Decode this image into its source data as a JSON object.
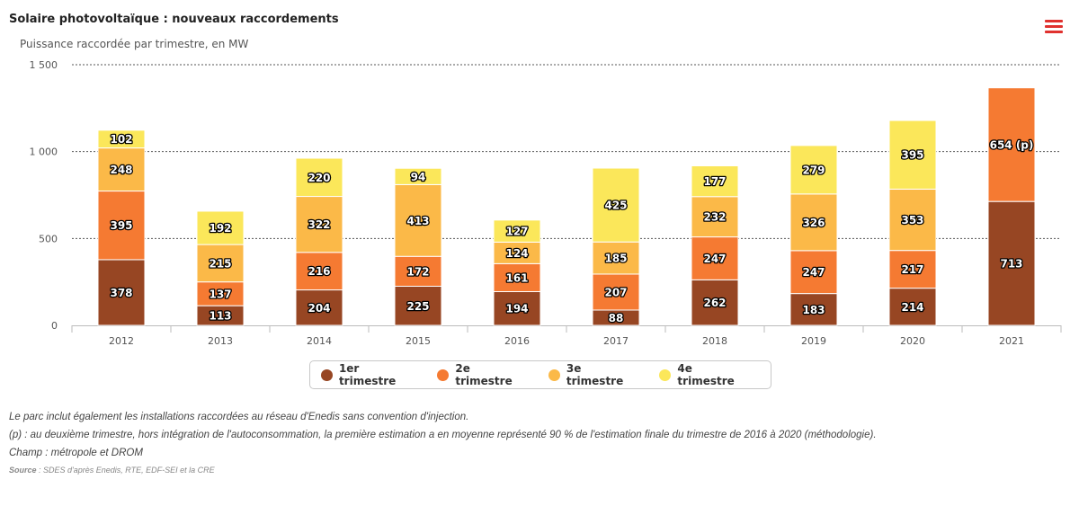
{
  "header": {
    "title": "Solaire photovoltaïque : nouveaux raccordements",
    "subtitle": "Puissance raccordée par trimestre, en MW",
    "menu_icon": "hamburger-menu-icon"
  },
  "chart_data": {
    "type": "bar",
    "stacked": true,
    "categories": [
      "2012",
      "2013",
      "2014",
      "2015",
      "2016",
      "2017",
      "2018",
      "2019",
      "2020",
      "2021"
    ],
    "series": [
      {
        "name": "1er trimestre",
        "color": "#974623",
        "values": [
          378,
          113,
          204,
          225,
          194,
          88,
          262,
          183,
          214,
          713
        ],
        "labels": [
          "378",
          "113",
          "204",
          "225",
          "194",
          "88",
          "262",
          "183",
          "214",
          "713"
        ]
      },
      {
        "name": "2e trimestre",
        "color": "#f57a32",
        "values": [
          395,
          137,
          216,
          172,
          161,
          207,
          247,
          247,
          217,
          654
        ],
        "labels": [
          "395",
          "137",
          "216",
          "172",
          "161",
          "207",
          "247",
          "247",
          "217",
          "654 (p)"
        ]
      },
      {
        "name": "3e trimestre",
        "color": "#fbb948",
        "values": [
          248,
          215,
          322,
          413,
          124,
          185,
          232,
          326,
          353,
          null
        ],
        "labels": [
          "248",
          "215",
          "322",
          "413",
          "124",
          "185",
          "232",
          "326",
          "353",
          ""
        ]
      },
      {
        "name": "4e trimestre",
        "color": "#fbe75a",
        "values": [
          102,
          192,
          220,
          94,
          127,
          425,
          177,
          279,
          395,
          null
        ],
        "labels": [
          "102",
          "192",
          "220",
          "94",
          "127",
          "425",
          "177",
          "279",
          "395",
          ""
        ]
      }
    ],
    "ylim": [
      0,
      1500
    ],
    "yticks": [
      0,
      500,
      1000,
      1500
    ],
    "ytick_labels": [
      "0",
      "500",
      "1 000",
      "1 500"
    ],
    "grid": "dashed horizontal",
    "legend_position": "bottom-center"
  },
  "notes": {
    "line1": "Le parc inclut également les installations raccordées au réseau d'Enedis sans convention d'injection.",
    "line2": "(p) : au deuxième trimestre, hors intégration de l'autoconsommation, la première estimation a en moyenne représenté 90 % de l'estimation finale du trimestre de 2016 à 2020 (méthodologie).",
    "line3": "Champ : métropole et DROM",
    "source_label": "Source",
    "source_text": " : SDES d'après Enedis, RTE, EDF-SEI et la CRE"
  }
}
